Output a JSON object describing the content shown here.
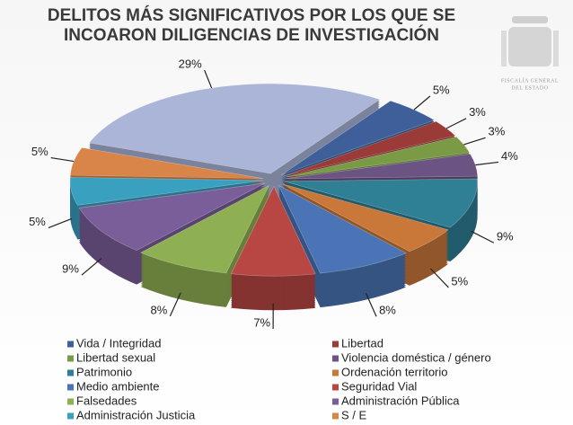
{
  "chart_data": {
    "type": "pie",
    "title": [
      "DELITOS MÁS SIGNIFICATIVOS POR LOS QUE SE",
      "INCOARON DILIGENCIAS DE INVESTIGACIÓN"
    ],
    "logo_text": [
      "FISCALÍA GENERAL",
      "DEL ESTADO"
    ],
    "categories": [
      null,
      "Vida / Integridad",
      "Libertad",
      "Libertad sexual",
      "Violencia doméstica / género",
      "Patrimonio",
      "Ordenación territorio",
      "Medio ambiente",
      "Seguridad Vial",
      "Falsedades",
      "Administración Pública",
      "Administración Justicia",
      "S / E"
    ],
    "values": [
      29,
      5,
      3,
      3,
      4,
      9,
      5,
      8,
      7,
      8,
      9,
      5,
      5
    ],
    "value_labels": [
      "29%",
      "5%",
      "3%",
      "3%",
      "4%",
      "9%",
      "5%",
      "8%",
      "7%",
      "8%",
      "9%",
      "5%",
      "5%"
    ],
    "colors": [
      "#aab5d8",
      "#3f5f9a",
      "#9a3b38",
      "#7b9a45",
      "#6b5384",
      "#2f7f95",
      "#c9783a",
      "#4a74b5",
      "#b84744",
      "#8fb052",
      "#7a5e9a",
      "#3aa0bf",
      "#d9854a"
    ]
  }
}
